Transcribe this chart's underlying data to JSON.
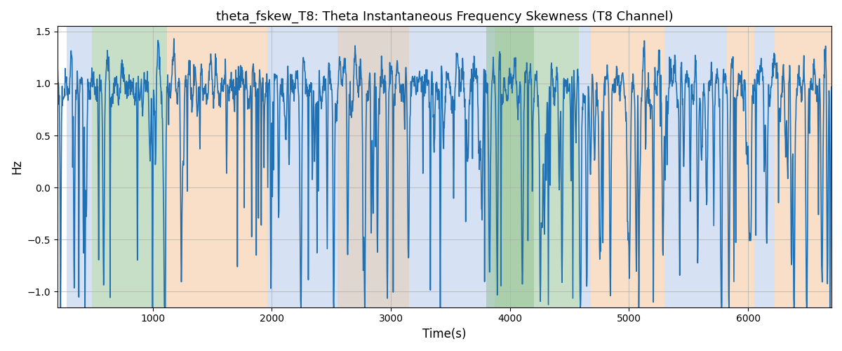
{
  "title": "theta_fskew_T8: Theta Instantaneous Frequency Skewness (T8 Channel)",
  "xlabel": "Time(s)",
  "ylabel": "Hz",
  "xlim": [
    200,
    6700
  ],
  "ylim": [
    -1.15,
    1.55
  ],
  "yticks": [
    -1.0,
    -0.5,
    0.0,
    0.5,
    1.0,
    1.5
  ],
  "xticks": [
    1000,
    2000,
    3000,
    4000,
    5000,
    6000
  ],
  "line_color": "#2070b4",
  "line_width": 1.2,
  "bg_regions": [
    {
      "xmin": 280,
      "xmax": 490,
      "color": "#aec6e8",
      "alpha": 0.5
    },
    {
      "xmin": 490,
      "xmax": 1120,
      "color": "#90c090",
      "alpha": 0.5
    },
    {
      "xmin": 1120,
      "xmax": 1960,
      "color": "#f5c090",
      "alpha": 0.5
    },
    {
      "xmin": 1960,
      "xmax": 3800,
      "color": "#aec6e8",
      "alpha": 0.5
    },
    {
      "xmin": 2550,
      "xmax": 3150,
      "color": "#f5c090",
      "alpha": 0.35
    },
    {
      "xmin": 3800,
      "xmax": 3870,
      "color": "#aec6e8",
      "alpha": 0.5
    },
    {
      "xmin": 3870,
      "xmax": 4200,
      "color": "#90c090",
      "alpha": 0.5
    },
    {
      "xmin": 3800,
      "xmax": 4580,
      "color": "#90c090",
      "alpha": 0.5
    },
    {
      "xmin": 4580,
      "xmax": 4680,
      "color": "#aec6e8",
      "alpha": 0.5
    },
    {
      "xmin": 4680,
      "xmax": 5300,
      "color": "#f5c090",
      "alpha": 0.5
    },
    {
      "xmin": 5300,
      "xmax": 5820,
      "color": "#aec6e8",
      "alpha": 0.5
    },
    {
      "xmin": 5820,
      "xmax": 6050,
      "color": "#f5c090",
      "alpha": 0.5
    },
    {
      "xmin": 6050,
      "xmax": 6220,
      "color": "#aec6e8",
      "alpha": 0.5
    },
    {
      "xmin": 6220,
      "xmax": 6700,
      "color": "#f5c090",
      "alpha": 0.5
    }
  ],
  "n_points": 2500,
  "seed": 77,
  "figsize": [
    12.0,
    5.0
  ],
  "dpi": 100
}
